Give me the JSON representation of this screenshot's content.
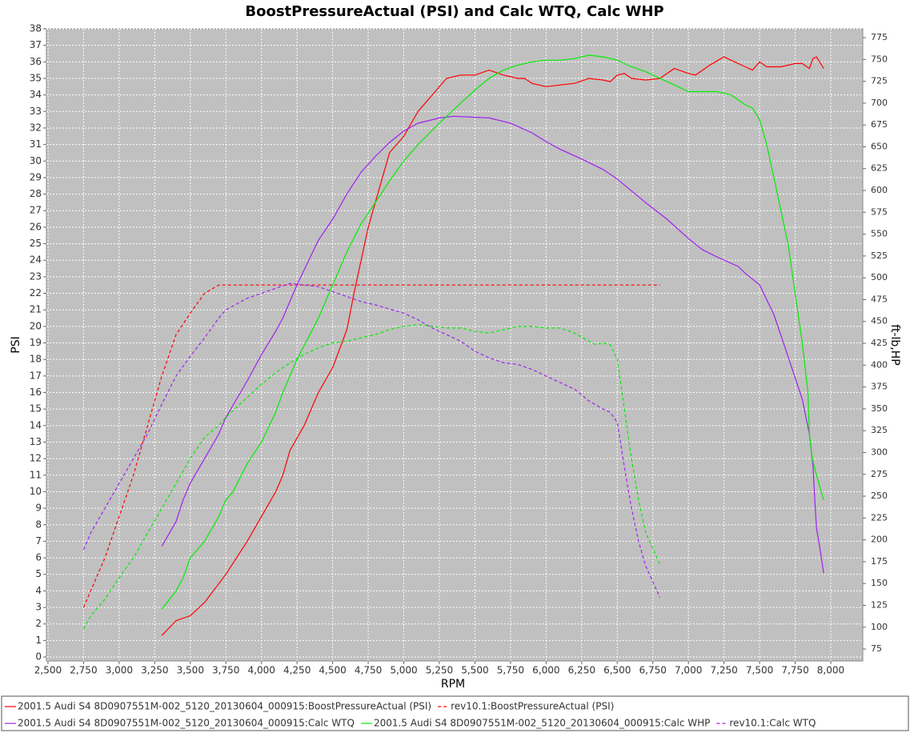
{
  "chart_data": {
    "type": "line",
    "title": "BoostPressureActual (PSI) and Calc WTQ, Calc WHP",
    "x_label": "RPM",
    "y_label": "PSI",
    "y2_label": "ft-lb,HP",
    "grid": true,
    "background": "#c0c0c0",
    "grid_color": "#ffffff",
    "xlim": [
      2489,
      8225
    ],
    "ylim": [
      -0.24,
      38
    ],
    "y2lim": [
      61.3,
      785.1
    ],
    "xticks": [
      {
        "value": 2500,
        "label": "2,500"
      },
      {
        "value": 2750,
        "label": "2,750"
      },
      {
        "value": 3000,
        "label": "3,000"
      },
      {
        "value": 3250,
        "label": "3,250"
      },
      {
        "value": 3500,
        "label": "3,500"
      },
      {
        "value": 3750,
        "label": "3,750"
      },
      {
        "value": 4000,
        "label": "4,000"
      },
      {
        "value": 4250,
        "label": "4,250"
      },
      {
        "value": 4500,
        "label": "4,500"
      },
      {
        "value": 4750,
        "label": "4,750"
      },
      {
        "value": 5000,
        "label": "5,000"
      },
      {
        "value": 5250,
        "label": "5,250"
      },
      {
        "value": 5500,
        "label": "5,500"
      },
      {
        "value": 5750,
        "label": "5,750"
      },
      {
        "value": 6000,
        "label": "6,000"
      },
      {
        "value": 6250,
        "label": "6,250"
      },
      {
        "value": 6500,
        "label": "6,500"
      },
      {
        "value": 6750,
        "label": "6,750"
      },
      {
        "value": 7000,
        "label": "7,000"
      },
      {
        "value": 7250,
        "label": "7,250"
      },
      {
        "value": 7500,
        "label": "7,500"
      },
      {
        "value": 7750,
        "label": "7,750"
      },
      {
        "value": 8000,
        "label": "8,000"
      }
    ],
    "yticks": [
      0,
      1,
      2,
      3,
      4,
      5,
      6,
      7,
      8,
      9,
      10,
      11,
      12,
      13,
      14,
      15,
      16,
      17,
      18,
      19,
      20,
      21,
      22,
      23,
      24,
      25,
      26,
      27,
      28,
      29,
      30,
      31,
      32,
      33,
      34,
      35,
      36,
      37,
      38
    ],
    "y2ticks": [
      75,
      100,
      125,
      150,
      175,
      200,
      225,
      250,
      275,
      300,
      325,
      350,
      375,
      400,
      425,
      450,
      475,
      500,
      525,
      550,
      575,
      600,
      625,
      650,
      675,
      700,
      725,
      750,
      775
    ],
    "series": [
      {
        "name": "2001.5 Audi S4 8D0907551M-002_5120_20130604_000915:BoostPressureActual (PSI)",
        "color": "#ff0000",
        "line_style": "solid",
        "axis": "y",
        "x": [
          3300,
          3400,
          3500,
          3600,
          3750,
          3900,
          4000,
          4100,
          4150,
          4200,
          4300,
          4400,
          4500,
          4600,
          4650,
          4700,
          4750,
          4850,
          4900,
          5000,
          5100,
          5200,
          5300,
          5400,
          5500,
          5600,
          5700,
          5800,
          5850,
          5900,
          6000,
          6100,
          6200,
          6300,
          6400,
          6450,
          6500,
          6550,
          6600,
          6700,
          6800,
          6900,
          7000,
          7050,
          7150,
          7250,
          7300,
          7400,
          7450,
          7500,
          7550,
          7650,
          7750,
          7800,
          7850,
          7875,
          7900,
          7950
        ],
        "values": [
          1.3,
          2.2,
          2.5,
          3.3,
          5,
          7,
          8.5,
          10,
          11,
          12.5,
          14,
          16,
          17.5,
          19.8,
          22,
          24,
          26,
          29,
          30.5,
          31.5,
          33,
          34,
          35,
          35.2,
          35.2,
          35.5,
          35.2,
          35,
          35,
          34.7,
          34.5,
          34.6,
          34.7,
          35,
          34.9,
          34.8,
          35.2,
          35.3,
          35,
          34.9,
          35,
          35.6,
          35.3,
          35.2,
          35.8,
          36.3,
          36.1,
          35.7,
          35.5,
          36,
          35.7,
          35.7,
          35.9,
          35.9,
          35.6,
          36.2,
          36.3,
          35.6
        ]
      },
      {
        "name": "rev10.1:BoostPressureActual (PSI)",
        "color": "#ff0000",
        "line_style": "dashed",
        "axis": "y",
        "x": [
          2750,
          2800,
          2900,
          3000,
          3100,
          3200,
          3300,
          3400,
          3500,
          3600,
          3700,
          3800,
          4000,
          4500,
          5000,
          5500,
          6000,
          6500,
          6800
        ],
        "values": [
          3,
          4,
          6,
          8.5,
          11,
          14,
          17,
          19.5,
          20.8,
          22,
          22.5,
          22.5,
          22.5,
          22.5,
          22.5,
          22.5,
          22.5,
          22.5,
          22.5
        ]
      },
      {
        "name": "2001.5 Audi S4 8D0907551M-002_5120_20130604_000915:Calc WTQ",
        "color": "#a020f0",
        "line_style": "solid",
        "axis": "y2",
        "x": [
          3300,
          3400,
          3450,
          3500,
          3600,
          3700,
          3750,
          3800,
          3900,
          4000,
          4100,
          4150,
          4250,
          4400,
          4500,
          4600,
          4700,
          4800,
          4900,
          5000,
          5100,
          5250,
          5350,
          5600,
          5750,
          5900,
          6000,
          6100,
          6250,
          6400,
          6500,
          6700,
          6850,
          7000,
          7100,
          7200,
          7350,
          7400,
          7500,
          7600,
          7700,
          7800,
          7850,
          7875,
          7890,
          7900,
          7925,
          7950
        ],
        "values": [
          192.6,
          221,
          246,
          265,
          293,
          321,
          340,
          354,
          382,
          412,
          439,
          454,
          492,
          543,
          567,
          596,
          621,
          639,
          655,
          668,
          677,
          683,
          685,
          683,
          677,
          666,
          656,
          647,
          636,
          624,
          613,
          586,
          567,
          545,
          532,
          524,
          513,
          505,
          492,
          458,
          410,
          361,
          321,
          284,
          240,
          213,
          189,
          162
        ]
      },
      {
        "name": "2001.5 Audi S4 8D0907551M-002_5120_20130604_000915:Calc WHP",
        "color": "#00ee00",
        "line_style": "solid",
        "axis": "y2",
        "x": [
          3300,
          3400,
          3450,
          3500,
          3600,
          3700,
          3750,
          3800,
          3900,
          4000,
          4100,
          4150,
          4250,
          4400,
          4500,
          4600,
          4700,
          4800,
          4900,
          5000,
          5100,
          5250,
          5400,
          5500,
          5600,
          5700,
          5800,
          5900,
          6000,
          6100,
          6200,
          6300,
          6400,
          6500,
          6600,
          6700,
          6800,
          6900,
          7000,
          7100,
          7200,
          7300,
          7400,
          7450,
          7500,
          7550,
          7600,
          7700,
          7750,
          7800,
          7840,
          7850,
          7870,
          7900,
          7950
        ],
        "values": [
          120.7,
          141.5,
          156.7,
          179.4,
          198.3,
          226.7,
          245.6,
          255.1,
          287.3,
          311.9,
          346,
          368.7,
          406.5,
          453.9,
          491.7,
          529.6,
          561.8,
          586.4,
          611,
          633.7,
          652.6,
          677.2,
          700,
          715,
          728.4,
          737.8,
          743.5,
          747.3,
          749.2,
          749.2,
          751,
          754.9,
          753,
          749.2,
          741.6,
          736,
          728.4,
          720.8,
          713.2,
          713.2,
          713.2,
          709.4,
          698.1,
          694.3,
          681,
          652.6,
          614.8,
          539,
          482.3,
          425.5,
          368.7,
          321.4,
          293,
          274,
          245.6
        ]
      },
      {
        "name": "rev10.1:Calc WTQ",
        "color": "#a020f0",
        "line_style": "dashed",
        "axis": "y2",
        "x": [
          2750,
          2800,
          2900,
          3000,
          3100,
          3200,
          3300,
          3400,
          3500,
          3600,
          3700,
          3750,
          3900,
          4000,
          4100,
          4200,
          4300,
          4400,
          4500,
          4600,
          4700,
          4800,
          5000,
          5100,
          5200,
          5300,
          5400,
          5500,
          5600,
          5700,
          5800,
          5900,
          6000,
          6100,
          6200,
          6300,
          6400,
          6450,
          6500,
          6550,
          6600,
          6650,
          6700,
          6800
        ],
        "values": [
          188.8,
          207.8,
          236.2,
          264.6,
          293,
          321.4,
          355.4,
          387.6,
          410.3,
          431.2,
          453.9,
          463.3,
          476.6,
          482.3,
          488,
          493.6,
          491.7,
          489.8,
          484.2,
          478.5,
          472.8,
          469,
          459.5,
          452,
          442.5,
          435,
          427.4,
          416,
          408.4,
          402.8,
          400.9,
          395.2,
          387.6,
          380,
          372.5,
          359.2,
          349.8,
          346,
          334.6,
          283.5,
          236.2,
          198.3,
          170,
          134
        ]
      },
      {
        "name": "rev10.1:Calc WHP",
        "color": "#00ee00",
        "line_style": "dashed",
        "axis": "y2",
        "x": [
          2750,
          2800,
          2900,
          3000,
          3100,
          3200,
          3300,
          3400,
          3500,
          3600,
          3700,
          3750,
          3900,
          4000,
          4100,
          4200,
          4300,
          4400,
          4500,
          4600,
          4700,
          4800,
          4900,
          5000,
          5100,
          5200,
          5300,
          5400,
          5500,
          5600,
          5700,
          5800,
          5900,
          6000,
          6100,
          6200,
          6300,
          6350,
          6400,
          6450,
          6500,
          6550,
          6600,
          6650,
          6700,
          6800
        ],
        "values": [
          98,
          113,
          132,
          156.7,
          179.4,
          207.8,
          236.2,
          264.6,
          293,
          317.6,
          330.8,
          340.3,
          363,
          378.1,
          391.4,
          402.8,
          412.2,
          419.8,
          425.5,
          427.4,
          431.2,
          435,
          440.6,
          444.4,
          446.3,
          444.4,
          442.5,
          442.5,
          438.7,
          436.8,
          440.6,
          444.4,
          444.4,
          442.5,
          442.5,
          436.8,
          427.4,
          423.6,
          425.5,
          423.6,
          406.5,
          349.8,
          293,
          245.6,
          207.8,
          171.8
        ]
      }
    ]
  }
}
